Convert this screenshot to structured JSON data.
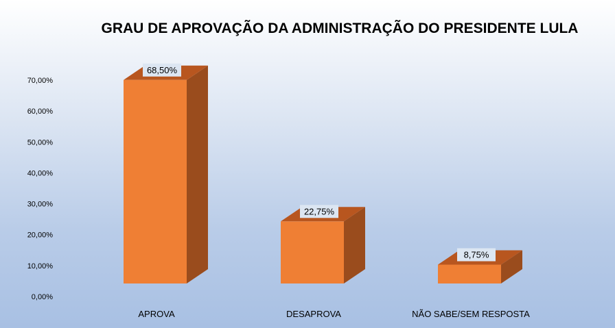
{
  "chart_data": {
    "type": "bar",
    "title": "GRAU DE APROVAÇÃO DA ADMINISTRAÇÃO DO PRESIDENTE LULA",
    "categories": [
      "APROVA",
      "DESAPROVA",
      "NÃO SABE/SEM RESPOSTA"
    ],
    "values": [
      68.5,
      22.75,
      8.75
    ],
    "data_labels": [
      "68,50%",
      "22,75%",
      "8,75%"
    ],
    "y_ticks": [
      0,
      10,
      20,
      30,
      40,
      50,
      60,
      70
    ],
    "y_tick_labels": [
      "0,00%",
      "10,00%",
      "20,00%",
      "30,00%",
      "40,00%",
      "50,00%",
      "60,00%",
      "70,00%"
    ],
    "ylim": [
      0,
      70
    ],
    "xlabel": "",
    "ylabel": "",
    "grid": false,
    "style": "3d-column",
    "colors": {
      "front": "#ef7f34",
      "side": "#9a4c1d",
      "top": "#b8561f",
      "label_bg": "#dce6f2"
    }
  }
}
